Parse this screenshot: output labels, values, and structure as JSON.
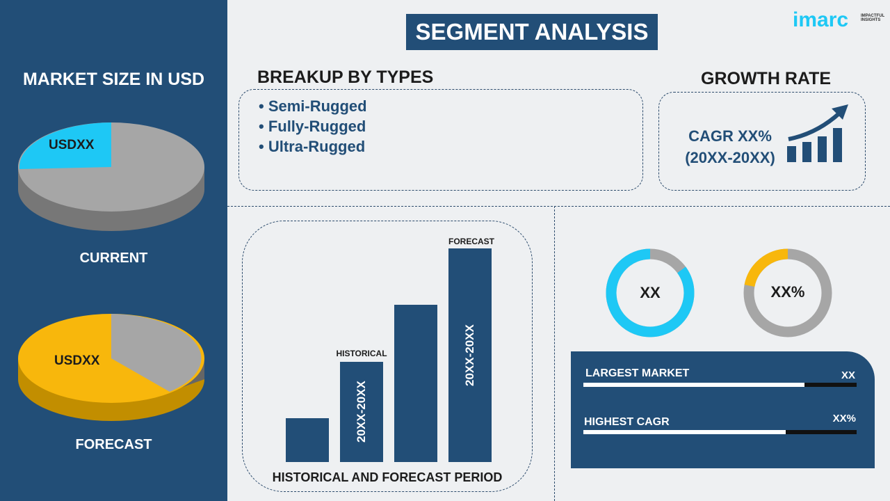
{
  "title": "SEGMENT ANALYSIS",
  "logo": {
    "text": "imarc",
    "tagline": "IMPACTFUL INSIGHTS"
  },
  "left": {
    "heading": "MARKET SIZE IN USD",
    "current": {
      "value": "USDXX",
      "label": "CURRENT"
    },
    "forecast": {
      "value": "USDXX",
      "label": "FORECAST"
    }
  },
  "breakup": {
    "heading": "BREAKUP BY TYPES",
    "items": [
      "• Semi-Rugged",
      "• Fully-Rugged",
      "• Ultra-Rugged"
    ]
  },
  "growth": {
    "heading": "GROWTH RATE",
    "cagr": "CAGR XX%",
    "period": "(20XX-20XX)"
  },
  "period_chart": {
    "historical_label": "HISTORICAL",
    "forecast_label": "FORECAST",
    "historical_range": "20XX-20XX",
    "forecast_range": "20XX-20XX",
    "footer": "HISTORICAL AND FORECAST PERIOD"
  },
  "donuts": [
    {
      "label": "XX",
      "fill": 0.85,
      "color": "#1ec8f5"
    },
    {
      "label": "XX%",
      "fill": 0.22,
      "color": "#f8b70c"
    }
  ],
  "stats": [
    {
      "label": "LARGEST MARKET",
      "value": "XX",
      "fill": 0.81
    },
    {
      "label": "HIGHEST CAGR",
      "value": "XX%",
      "fill": 0.74
    }
  ],
  "colors": {
    "navy": "#224e77",
    "cyan": "#1ec8f5",
    "yellow": "#f8b70c",
    "gray": "#a6a6a6"
  }
}
